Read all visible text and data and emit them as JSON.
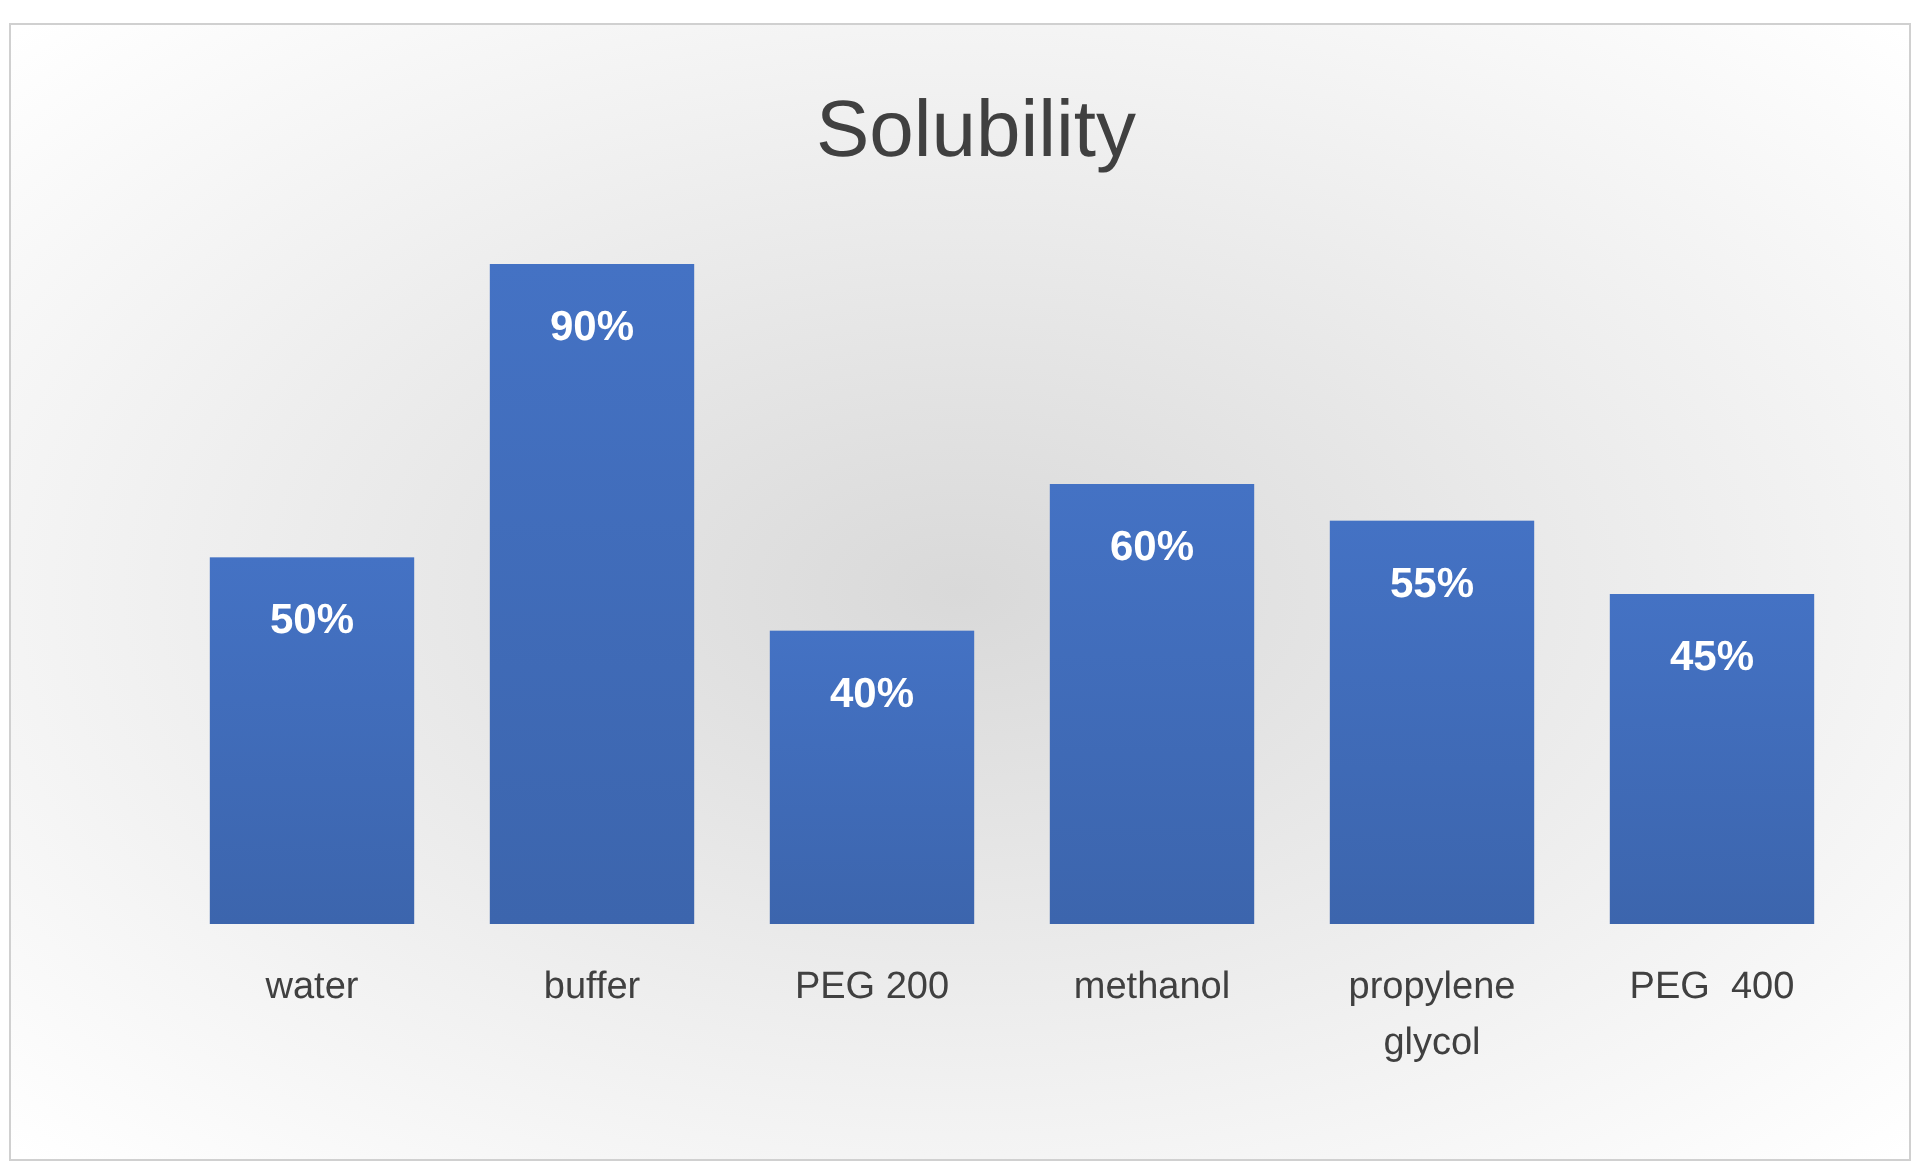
{
  "chart_data": {
    "type": "bar",
    "title": "Solubility",
    "categories": [
      "water",
      "buffer",
      "PEG 200",
      "methanol",
      "propylene glycol",
      "PEG  400"
    ],
    "values": [
      50,
      90,
      40,
      60,
      55,
      45
    ],
    "value_labels": [
      "50%",
      "90%",
      "40%",
      "60%",
      "55%",
      "45%"
    ],
    "color": "#4472c4"
  }
}
